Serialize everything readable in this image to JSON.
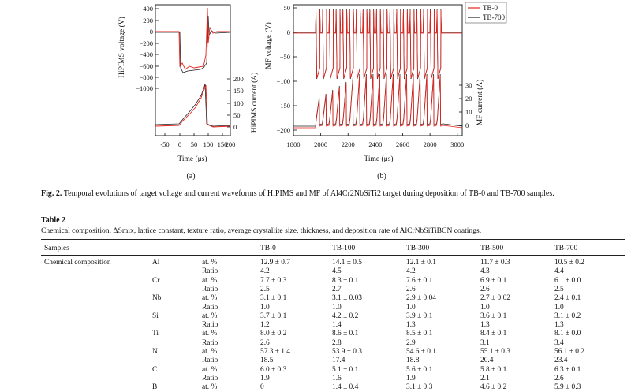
{
  "figure": {
    "panel_a": {
      "label": "(a)",
      "x_title": "Time (μs)",
      "y_left_title": "HiPIMS voltage (V)",
      "y_right_title": "HiPIMS current (A)",
      "x_ticks": [
        "-50",
        "0",
        "50",
        "100",
        "150",
        "200"
      ],
      "y_left_ticks": [
        "400",
        "200",
        "0",
        "−200",
        "−400",
        "−600",
        "−800",
        "−1000"
      ],
      "y_right_ticks": [
        "200",
        "150",
        "100",
        "50",
        "0"
      ]
    },
    "panel_b": {
      "label": "(b)",
      "x_title": "Time (μs)",
      "y_left_title": "MF voltage (V)",
      "y_right_title": "MF current (A)",
      "x_ticks": [
        "1800",
        "2000",
        "2200",
        "2400",
        "2600",
        "2800",
        "3000"
      ],
      "y_left_ticks": [
        "50",
        "0",
        "−50",
        "−100",
        "−150",
        "−200"
      ],
      "y_right_ticks": [
        "30",
        "20",
        "10",
        "0"
      ],
      "legend": [
        {
          "name": "TB-0",
          "color": "#e8231d"
        },
        {
          "name": "TB-700",
          "color": "#222222"
        }
      ]
    },
    "caption": {
      "label": "Fig. 2.",
      "text": "Temporal evolutions of target voltage and current waveforms of HiPIMS and MF of Al4Cr2NbSiTi2 target during deposition of TB-0 and TB-700 samples."
    }
  },
  "table": {
    "title": "Table 2",
    "caption": "Chemical composition, ΔSmix, lattice constant, texture ratio, average crystallite size, thickness, and deposition rate of AlCrNbSiTiBCN coatings.",
    "header": [
      "Samples",
      "TB-0",
      "TB-100",
      "TB-300",
      "TB-500",
      "TB-700"
    ],
    "section_label": "Chemical composition",
    "rows": [
      {
        "element": "Al",
        "metric": "at. %",
        "values": [
          "12.9 ± 0.7",
          "14.1 ± 0.5",
          "12.1 ± 0.1",
          "11.7 ± 0.3",
          "10.5 ± 0.2"
        ]
      },
      {
        "element": "",
        "metric": "Ratio",
        "values": [
          "4.2",
          "4.5",
          "4.2",
          "4.3",
          "4.4"
        ]
      },
      {
        "element": "Cr",
        "metric": "at. %",
        "values": [
          "7.7 ± 0.3",
          "8.3 ± 0.1",
          "7.6 ± 0.1",
          "6.9 ± 0.1",
          "6.1 ± 0.0"
        ]
      },
      {
        "element": "",
        "metric": "Ratio",
        "values": [
          "2.5",
          "2.7",
          "2.6",
          "2.6",
          "2.5"
        ]
      },
      {
        "element": "Nb",
        "metric": "at. %",
        "values": [
          "3.1 ± 0.1",
          "3.1 ± 0.03",
          "2.9 ± 0.04",
          "2.7 ± 0.02",
          "2.4 ± 0.1"
        ]
      },
      {
        "element": "",
        "metric": "Ratio",
        "values": [
          "1.0",
          "1.0",
          "1.0",
          "1.0",
          "1.0"
        ]
      },
      {
        "element": "Si",
        "metric": "at. %",
        "values": [
          "3.7 ± 0.1",
          "4.2 ± 0.2",
          "3.9 ± 0.1",
          "3.6 ± 0.1",
          "3.1 ± 0.2"
        ]
      },
      {
        "element": "",
        "metric": "Ratio",
        "values": [
          "1.2",
          "1.4",
          "1.3",
          "1.3",
          "1.3"
        ]
      },
      {
        "element": "Ti",
        "metric": "at. %",
        "values": [
          "8.0 ± 0.2",
          "8.6 ± 0.1",
          "8.5 ± 0.1",
          "8.4 ± 0.1",
          "8.1 ± 0.0"
        ]
      },
      {
        "element": "",
        "metric": "Ratio",
        "values": [
          "2.6",
          "2.8",
          "2.9",
          "3.1",
          "3.4"
        ]
      },
      {
        "element": "N",
        "metric": "at. %",
        "values": [
          "57.3 ± 1.4",
          "53.9 ± 0.3",
          "54.6 ± 0.1",
          "55.1 ± 0.3",
          "56.1 ± 0.2"
        ]
      },
      {
        "element": "",
        "metric": "Ratio",
        "values": [
          "18.5",
          "17.4",
          "18.8",
          "20.4",
          "23.4"
        ]
      },
      {
        "element": "C",
        "metric": "at. %",
        "values": [
          "6.0 ± 0.3",
          "5.1 ± 0.1",
          "5.6 ± 0.1",
          "5.8 ± 0.1",
          "6.3 ± 0.1"
        ]
      },
      {
        "element": "",
        "metric": "Ratio",
        "values": [
          "1.9",
          "1.6",
          "1.9",
          "2.1",
          "2.6"
        ]
      },
      {
        "element": "B",
        "metric": "at. %",
        "values": [
          "0",
          "1.4 ± 0.4",
          "3.1 ± 0.3",
          "4.6 ± 0.2",
          "5.9 ± 0.3"
        ]
      }
    ]
  }
}
